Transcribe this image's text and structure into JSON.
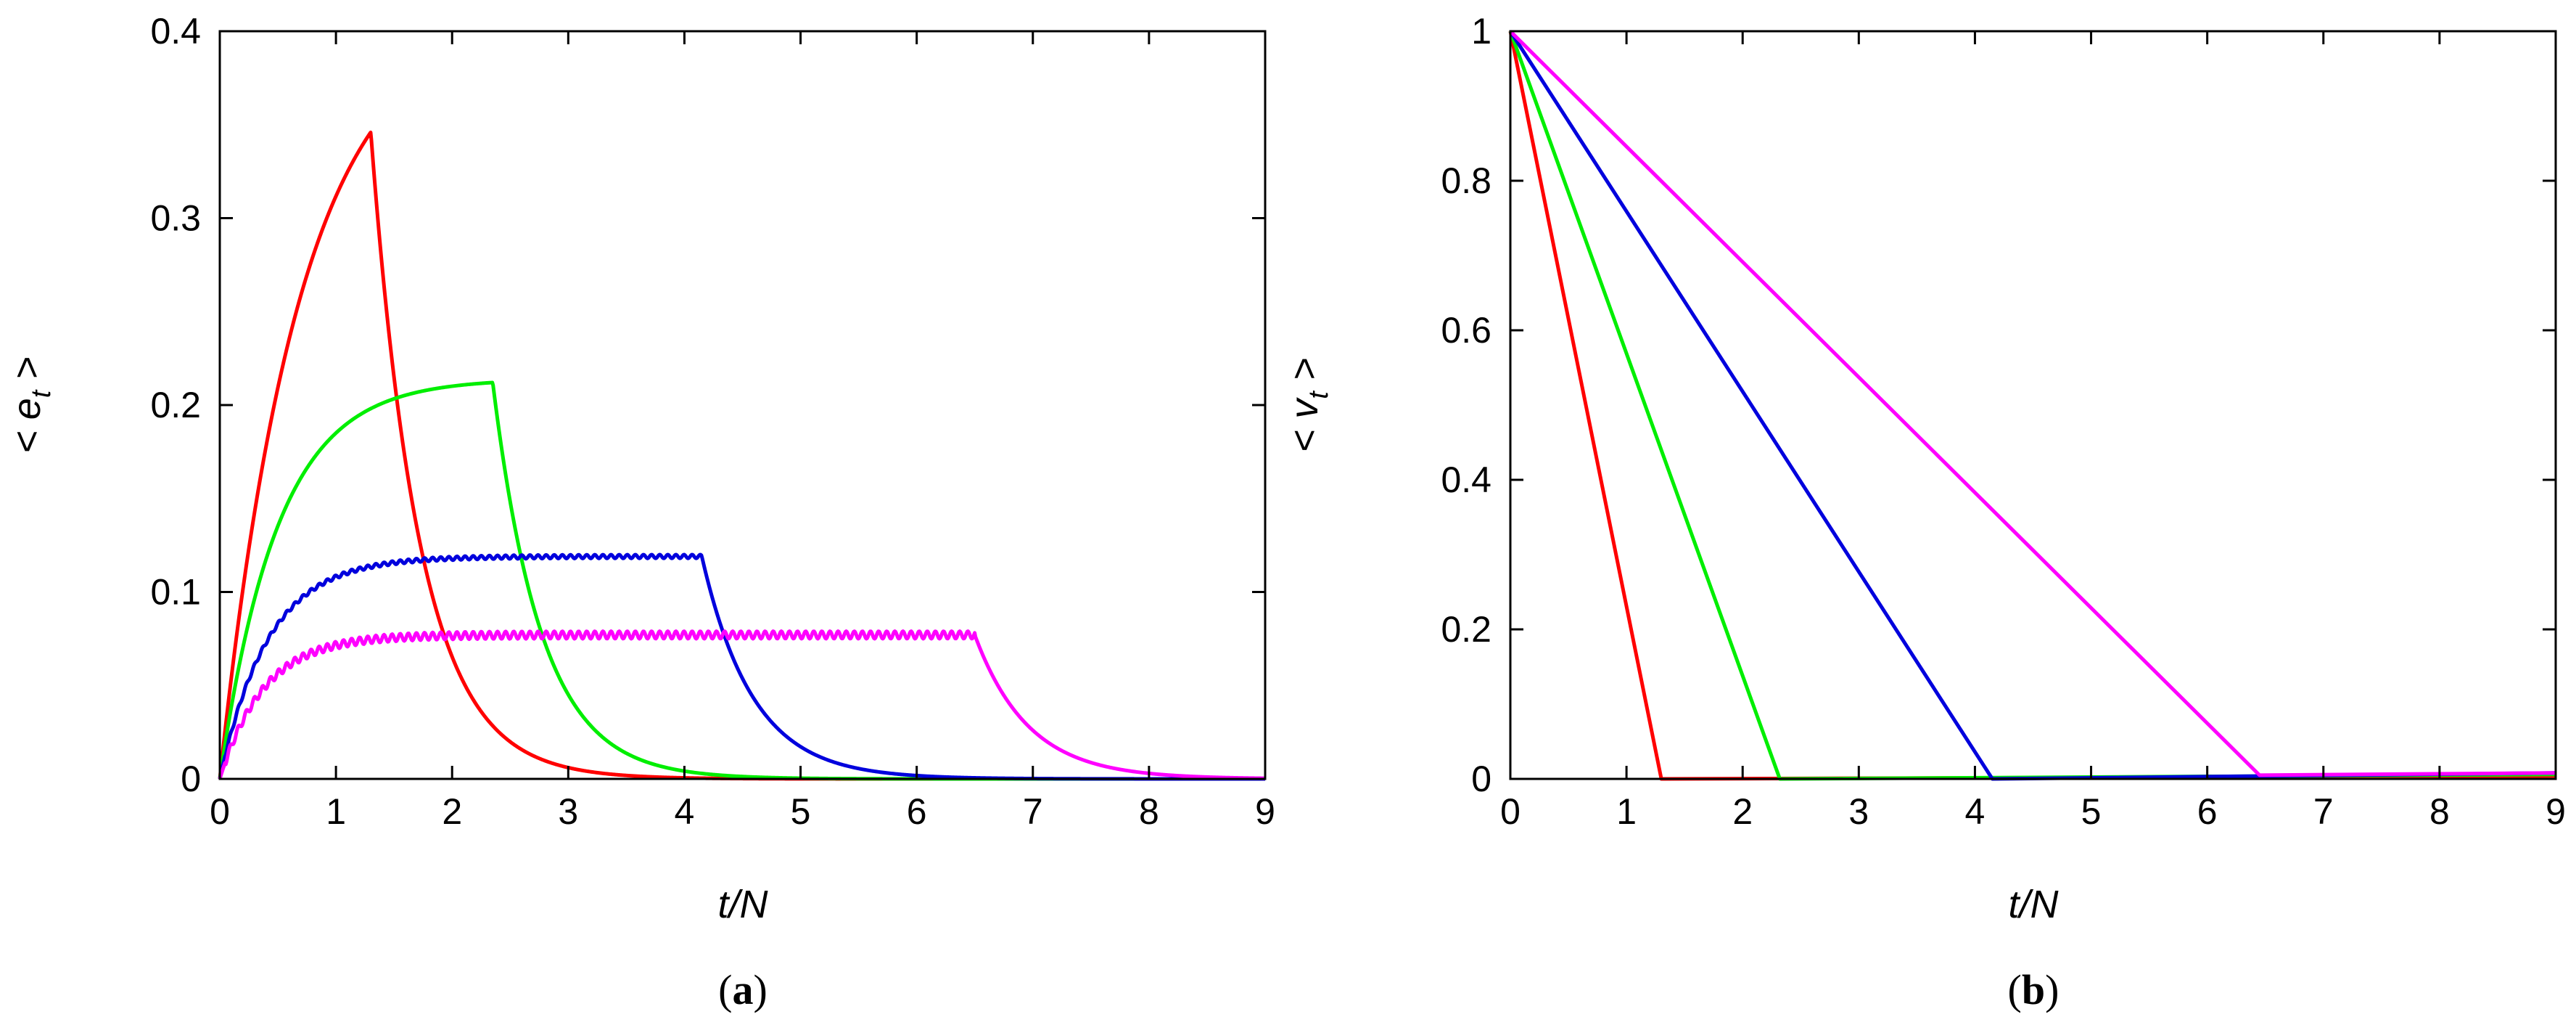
{
  "chart_data": [
    {
      "type": "line",
      "panel": "a",
      "caption": {
        "open": "(",
        "letter": "a",
        "close": ")"
      },
      "ylabel": {
        "open": "< ",
        "var": "e",
        "sub": "t",
        "close": " >"
      },
      "xlabel": "t/N",
      "xlim": [
        0,
        9
      ],
      "ylim": [
        0,
        0.4
      ],
      "x_ticks": [
        "0",
        "1",
        "2",
        "3",
        "4",
        "5",
        "6",
        "7",
        "8",
        "9"
      ],
      "y_ticks": [
        {
          "value": 0,
          "label": "0"
        },
        {
          "value": 0.1,
          "label": "0.1"
        },
        {
          "value": 0.2,
          "label": "0.2"
        },
        {
          "value": 0.3,
          "label": "0.3"
        },
        {
          "value": 0.4,
          "label": "0.4"
        }
      ],
      "series": [
        {
          "name": "red",
          "color": "#ff0000",
          "model": "rise_decay",
          "peak_t": 1.3,
          "plateau": 0.41,
          "tau_rise": 0.7,
          "tau_decay": 0.42,
          "jitter": 0
        },
        {
          "name": "green",
          "color": "#00ee00",
          "model": "rise_decay",
          "peak_t": 2.35,
          "plateau": 0.214,
          "tau_rise": 0.5,
          "tau_decay": 0.42,
          "jitter": 0
        },
        {
          "name": "blue",
          "color": "#0000dd",
          "model": "rise_decay",
          "peak_t": 4.15,
          "plateau": 0.119,
          "tau_rise": 0.42,
          "tau_decay": 0.44,
          "jitter": 0.001
        },
        {
          "name": "magenta",
          "color": "#ff00ff",
          "model": "rise_decay",
          "peak_t": 6.5,
          "plateau": 0.077,
          "tau_rise": 0.38,
          "tau_decay": 0.46,
          "jitter": 0.002
        }
      ]
    },
    {
      "type": "line",
      "panel": "b",
      "caption": {
        "open": "(",
        "letter": "b",
        "close": ")"
      },
      "ylabel": {
        "open": "< ",
        "var": "v",
        "sub": "t",
        "close": " >"
      },
      "xlabel": "t/N",
      "xlim": [
        0,
        9
      ],
      "ylim": [
        0,
        1
      ],
      "x_ticks": [
        "0",
        "1",
        "2",
        "3",
        "4",
        "5",
        "6",
        "7",
        "8",
        "9"
      ],
      "y_ticks": [
        {
          "value": 0,
          "label": "0"
        },
        {
          "value": 0.2,
          "label": "0.2"
        },
        {
          "value": 0.4,
          "label": "0.4"
        },
        {
          "value": 0.6,
          "label": "0.6"
        },
        {
          "value": 0.8,
          "label": "0.8"
        },
        {
          "value": 1,
          "label": "1"
        }
      ],
      "series": [
        {
          "name": "red",
          "color": "#ff0000",
          "points": [
            [
              0,
              1
            ],
            [
              1.3,
              0
            ],
            [
              9,
              0.004
            ]
          ]
        },
        {
          "name": "green",
          "color": "#00ee00",
          "points": [
            [
              0,
              1
            ],
            [
              2.32,
              0
            ],
            [
              9,
              0.006
            ]
          ]
        },
        {
          "name": "blue",
          "color": "#0000dd",
          "points": [
            [
              0,
              1
            ],
            [
              4.15,
              0
            ],
            [
              9,
              0.008
            ]
          ]
        },
        {
          "name": "magenta",
          "color": "#ff00ff",
          "points": [
            [
              0,
              1
            ],
            [
              6.45,
              0.005
            ],
            [
              9,
              0.008
            ]
          ]
        }
      ]
    }
  ]
}
